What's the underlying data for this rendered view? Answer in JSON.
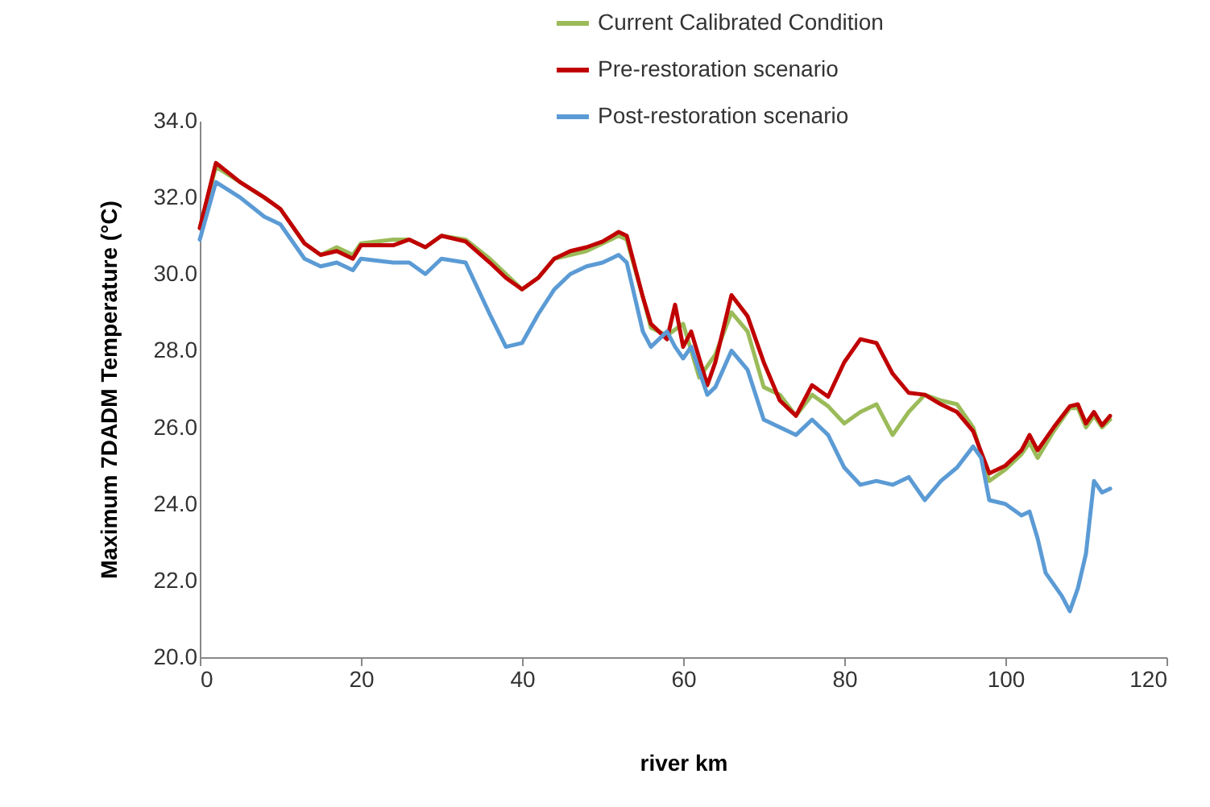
{
  "chart_data": {
    "type": "line",
    "xlabel": "river km",
    "ylabel": "Maximum 7DADM Temperature (°C)",
    "xlim": [
      0,
      120
    ],
    "xticks": [
      0,
      20,
      40,
      60,
      80,
      100,
      120
    ],
    "ylim": [
      20,
      34
    ],
    "yticks": [
      {
        "value": 20,
        "label": "20.0"
      },
      {
        "value": 22,
        "label": "22.0"
      },
      {
        "value": 24,
        "label": "24.0"
      },
      {
        "value": 26,
        "label": "26.0"
      },
      {
        "value": 28,
        "label": "28.0"
      },
      {
        "value": 30,
        "label": "30.0"
      },
      {
        "value": 32,
        "label": "32.0"
      },
      {
        "value": 34,
        "label": "34.0"
      }
    ],
    "grid": false,
    "legend": "top",
    "marker": "none",
    "line_style": "solid",
    "series": [
      {
        "name": "Current Calibrated Condition",
        "color": "#9bbb59",
        "x": [
          0,
          2,
          5,
          8,
          10,
          13,
          15,
          17,
          19,
          20,
          24,
          26,
          28,
          30,
          33,
          36,
          38,
          40,
          42,
          44,
          46,
          48,
          50,
          52,
          53,
          55,
          56,
          58,
          60,
          62,
          64,
          66,
          68,
          70,
          72,
          74,
          76,
          78,
          80,
          82,
          84,
          86,
          88,
          90,
          92,
          94,
          96,
          98,
          100,
          102,
          103,
          104,
          106,
          108,
          109,
          110,
          111,
          112,
          113
        ],
        "values": [
          31.2,
          32.8,
          32.4,
          32.0,
          31.7,
          30.8,
          30.5,
          30.7,
          30.5,
          30.8,
          30.9,
          30.9,
          30.7,
          31.0,
          30.9,
          30.4,
          30.0,
          29.6,
          29.9,
          30.4,
          30.5,
          30.6,
          30.8,
          31.0,
          30.9,
          29.4,
          28.6,
          28.4,
          28.7,
          27.3,
          27.9,
          29.0,
          28.5,
          27.05,
          26.85,
          26.3,
          26.85,
          26.55,
          26.1,
          26.4,
          26.6,
          25.8,
          26.4,
          26.85,
          26.7,
          26.6,
          26.0,
          24.6,
          24.9,
          25.3,
          25.6,
          25.2,
          25.9,
          26.5,
          26.5,
          26.0,
          26.3,
          26.0,
          26.2
        ]
      },
      {
        "name": "Pre-restoration scenario",
        "color": "#c00000",
        "x": [
          0,
          2,
          5,
          8,
          10,
          13,
          15,
          17,
          19,
          20,
          24,
          26,
          28,
          30,
          33,
          36,
          38,
          40,
          42,
          44,
          46,
          48,
          50,
          52,
          53,
          55,
          56,
          58,
          59,
          60,
          61,
          63,
          64,
          66,
          68,
          70,
          72,
          74,
          76,
          78,
          80,
          82,
          84,
          86,
          88,
          90,
          92,
          94,
          96,
          98,
          100,
          102,
          103,
          104,
          106,
          108,
          109,
          110,
          111,
          112,
          113
        ],
        "values": [
          31.2,
          32.9,
          32.4,
          32.0,
          31.7,
          30.8,
          30.5,
          30.6,
          30.4,
          30.75,
          30.75,
          30.9,
          30.7,
          31.0,
          30.85,
          30.3,
          29.9,
          29.6,
          29.9,
          30.4,
          30.6,
          30.7,
          30.85,
          31.1,
          31.0,
          29.4,
          28.7,
          28.3,
          29.2,
          28.1,
          28.5,
          27.1,
          27.7,
          29.45,
          28.9,
          27.7,
          26.7,
          26.3,
          27.1,
          26.8,
          27.7,
          28.3,
          28.2,
          27.4,
          26.9,
          26.85,
          26.6,
          26.4,
          25.9,
          24.8,
          25.0,
          25.4,
          25.8,
          25.4,
          26.0,
          26.55,
          26.6,
          26.1,
          26.4,
          26.05,
          26.3
        ]
      },
      {
        "name": "Post-restoration scenario",
        "color": "#5b9bd5",
        "x": [
          0,
          2,
          5,
          8,
          10,
          13,
          15,
          17,
          19,
          20,
          24,
          26,
          28,
          30,
          33,
          36,
          38,
          40,
          42,
          44,
          46,
          48,
          50,
          52,
          53,
          55,
          56,
          58,
          59,
          60,
          61,
          63,
          64,
          66,
          68,
          70,
          72,
          74,
          76,
          78,
          80,
          82,
          84,
          86,
          88,
          90,
          92,
          94,
          96,
          97,
          98,
          100,
          102,
          103,
          104,
          105,
          107,
          108,
          109,
          110,
          111,
          112,
          113
        ],
        "values": [
          30.9,
          32.4,
          32.0,
          31.5,
          31.3,
          30.4,
          30.2,
          30.3,
          30.1,
          30.4,
          30.3,
          30.3,
          30.0,
          30.4,
          30.3,
          28.95,
          28.1,
          28.2,
          28.95,
          29.6,
          30.0,
          30.2,
          30.3,
          30.5,
          30.3,
          28.5,
          28.1,
          28.5,
          28.1,
          27.8,
          28.1,
          26.85,
          27.05,
          28.0,
          27.5,
          26.2,
          26.0,
          25.8,
          26.2,
          25.8,
          24.95,
          24.5,
          24.6,
          24.5,
          24.7,
          24.1,
          24.6,
          24.95,
          25.5,
          25.2,
          24.1,
          24.0,
          23.7,
          23.8,
          23.1,
          22.2,
          21.6,
          21.2,
          21.8,
          22.7,
          24.6,
          24.3,
          24.4
        ]
      }
    ]
  }
}
